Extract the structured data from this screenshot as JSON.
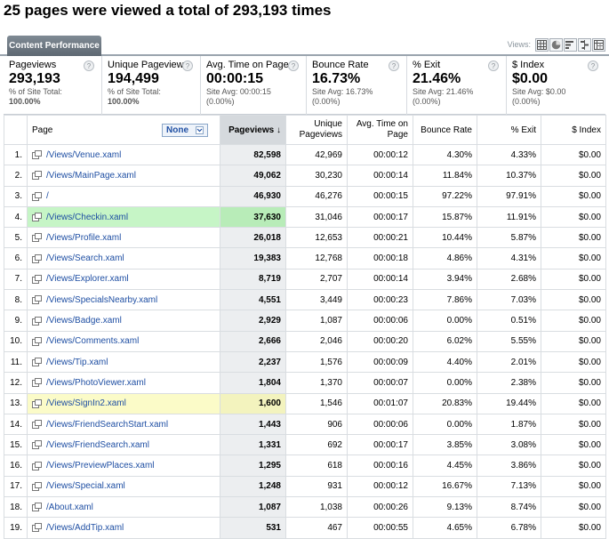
{
  "headline": "25 pages were viewed a total of 293,193 times",
  "tab_label": "Content Performance",
  "views_label": "Views:",
  "view_buttons": [
    {
      "name": "table-view-icon"
    },
    {
      "name": "pie-view-icon"
    },
    {
      "name": "performance-view-icon"
    },
    {
      "name": "comparison-view-icon"
    },
    {
      "name": "pivot-view-icon"
    }
  ],
  "summary": [
    {
      "label": "Pageviews",
      "value": "293,193",
      "sub1": "% of Site Total:",
      "sub2": "100.00%"
    },
    {
      "label": "Unique Pageviews",
      "value": "194,499",
      "sub1": "% of Site Total:",
      "sub2": "100.00%"
    },
    {
      "label": "Avg. Time on Page",
      "value": "00:00:15",
      "sub1": "Site Avg: 00:00:15",
      "sub2": "(0.00%)"
    },
    {
      "label": "Bounce Rate",
      "value": "16.73%",
      "sub1": "Site Avg: 16.73%",
      "sub2": "(0.00%)"
    },
    {
      "label": "% Exit",
      "value": "21.46%",
      "sub1": "Site Avg: 21.46%",
      "sub2": "(0.00%)"
    },
    {
      "label": "$ Index",
      "value": "$0.00",
      "sub1": "Site Avg: $0.00",
      "sub2": "(0.00%)"
    }
  ],
  "columns": {
    "page": "Page",
    "secondary_dimension": "None",
    "pageviews": "Pageviews",
    "sort_indicator": "↓",
    "unique_pageviews": "Unique Pageviews",
    "avg_time": "Avg. Time on Page",
    "bounce_rate": "Bounce Rate",
    "exit": "% Exit",
    "index": "$ Index"
  },
  "rows": [
    {
      "n": "1.",
      "page": "/Views/Venue.xaml",
      "pv": "82,598",
      "upv": "42,969",
      "time": "00:00:12",
      "bounce": "4.30%",
      "exit": "4.33%",
      "index": "$0.00",
      "hl": ""
    },
    {
      "n": "2.",
      "page": "/Views/MainPage.xaml",
      "pv": "49,062",
      "upv": "30,230",
      "time": "00:00:14",
      "bounce": "11.84%",
      "exit": "10.37%",
      "index": "$0.00",
      "hl": ""
    },
    {
      "n": "3.",
      "page": "/",
      "pv": "46,930",
      "upv": "46,276",
      "time": "00:00:15",
      "bounce": "97.22%",
      "exit": "97.91%",
      "index": "$0.00",
      "hl": ""
    },
    {
      "n": "4.",
      "page": "/Views/Checkin.xaml",
      "pv": "37,630",
      "upv": "31,046",
      "time": "00:00:17",
      "bounce": "15.87%",
      "exit": "11.91%",
      "index": "$0.00",
      "hl": "green"
    },
    {
      "n": "5.",
      "page": "/Views/Profile.xaml",
      "pv": "26,018",
      "upv": "12,653",
      "time": "00:00:21",
      "bounce": "10.44%",
      "exit": "5.87%",
      "index": "$0.00",
      "hl": ""
    },
    {
      "n": "6.",
      "page": "/Views/Search.xaml",
      "pv": "19,383",
      "upv": "12,768",
      "time": "00:00:18",
      "bounce": "4.86%",
      "exit": "4.31%",
      "index": "$0.00",
      "hl": ""
    },
    {
      "n": "7.",
      "page": "/Views/Explorer.xaml",
      "pv": "8,719",
      "upv": "2,707",
      "time": "00:00:14",
      "bounce": "3.94%",
      "exit": "2.68%",
      "index": "$0.00",
      "hl": ""
    },
    {
      "n": "8.",
      "page": "/Views/SpecialsNearby.xaml",
      "pv": "4,551",
      "upv": "3,449",
      "time": "00:00:23",
      "bounce": "7.86%",
      "exit": "7.03%",
      "index": "$0.00",
      "hl": ""
    },
    {
      "n": "9.",
      "page": "/Views/Badge.xaml",
      "pv": "2,929",
      "upv": "1,087",
      "time": "00:00:06",
      "bounce": "0.00%",
      "exit": "0.51%",
      "index": "$0.00",
      "hl": ""
    },
    {
      "n": "10.",
      "page": "/Views/Comments.xaml",
      "pv": "2,666",
      "upv": "2,046",
      "time": "00:00:20",
      "bounce": "6.02%",
      "exit": "5.55%",
      "index": "$0.00",
      "hl": ""
    },
    {
      "n": "11.",
      "page": "/Views/Tip.xaml",
      "pv": "2,237",
      "upv": "1,576",
      "time": "00:00:09",
      "bounce": "4.40%",
      "exit": "2.01%",
      "index": "$0.00",
      "hl": ""
    },
    {
      "n": "12.",
      "page": "/Views/PhotoViewer.xaml",
      "pv": "1,804",
      "upv": "1,370",
      "time": "00:00:07",
      "bounce": "0.00%",
      "exit": "2.38%",
      "index": "$0.00",
      "hl": ""
    },
    {
      "n": "13.",
      "page": "/Views/SignIn2.xaml",
      "pv": "1,600",
      "upv": "1,546",
      "time": "00:01:07",
      "bounce": "20.83%",
      "exit": "19.44%",
      "index": "$0.00",
      "hl": "yellow"
    },
    {
      "n": "14.",
      "page": "/Views/FriendSearchStart.xaml",
      "pv": "1,443",
      "upv": "906",
      "time": "00:00:06",
      "bounce": "0.00%",
      "exit": "1.87%",
      "index": "$0.00",
      "hl": ""
    },
    {
      "n": "15.",
      "page": "/Views/FriendSearch.xaml",
      "pv": "1,331",
      "upv": "692",
      "time": "00:00:17",
      "bounce": "3.85%",
      "exit": "3.08%",
      "index": "$0.00",
      "hl": ""
    },
    {
      "n": "16.",
      "page": "/Views/PreviewPlaces.xaml",
      "pv": "1,295",
      "upv": "618",
      "time": "00:00:16",
      "bounce": "4.45%",
      "exit": "3.86%",
      "index": "$0.00",
      "hl": ""
    },
    {
      "n": "17.",
      "page": "/Views/Special.xaml",
      "pv": "1,248",
      "upv": "931",
      "time": "00:00:12",
      "bounce": "16.67%",
      "exit": "7.13%",
      "index": "$0.00",
      "hl": ""
    },
    {
      "n": "18.",
      "page": "/About.xaml",
      "pv": "1,087",
      "upv": "1,038",
      "time": "00:00:26",
      "bounce": "9.13%",
      "exit": "8.74%",
      "index": "$0.00",
      "hl": ""
    },
    {
      "n": "19.",
      "page": "/Views/AddTip.xaml",
      "pv": "531",
      "upv": "467",
      "time": "00:00:55",
      "bounce": "4.65%",
      "exit": "6.78%",
      "index": "$0.00",
      "hl": ""
    }
  ]
}
